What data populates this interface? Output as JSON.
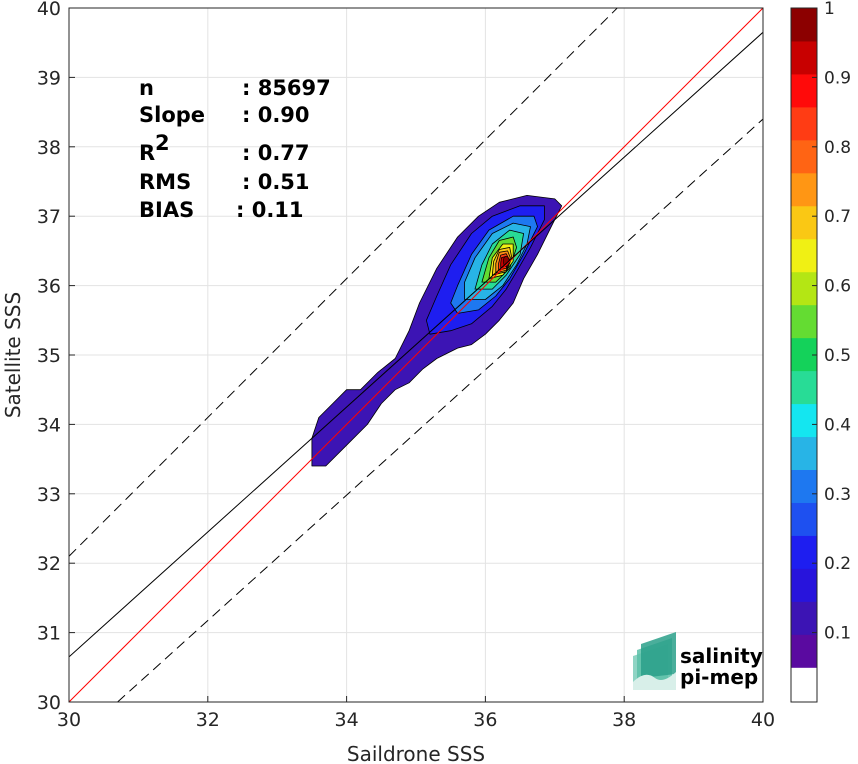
{
  "chart_data": {
    "type": "scatter",
    "subtype": "density-contour",
    "title": "",
    "xlabel": "Saildrone SSS",
    "ylabel": "Satellite SSS",
    "xlim": [
      30,
      40
    ],
    "ylim": [
      30,
      40
    ],
    "xticks": [
      "30",
      "32",
      "34",
      "36",
      "38",
      "40"
    ],
    "yticks": [
      "30",
      "31",
      "32",
      "33",
      "34",
      "35",
      "36",
      "37",
      "38",
      "39",
      "40"
    ],
    "grid": true,
    "stats": [
      {
        "key": "n",
        "sup": "",
        "value": ": 85697"
      },
      {
        "key": "Slope",
        "sup": "",
        "value": ": 0.90"
      },
      {
        "key": "R",
        "sup": "2",
        "value": ": 0.77"
      },
      {
        "key": "RMS",
        "sup": "",
        "value": ": 0.51"
      },
      {
        "key": "BIAS",
        "sup": "",
        "value": ": 0.11"
      }
    ],
    "lines": {
      "one_to_one": {
        "color": "#ff0000",
        "points": [
          [
            30,
            30
          ],
          [
            40,
            40
          ]
        ]
      },
      "regression": {
        "color": "#000000",
        "points": [
          [
            30,
            30.65
          ],
          [
            40,
            39.65
          ]
        ]
      },
      "upper_bound": {
        "color": "#000000",
        "dash": true,
        "points": [
          [
            30,
            32.1
          ],
          [
            39,
            41.1
          ]
        ]
      },
      "lower_bound": {
        "color": "#000000",
        "dash": true,
        "points": [
          [
            30.7,
            30
          ],
          [
            40,
            38.4
          ]
        ]
      }
    },
    "density_peak": {
      "x": 36.3,
      "y": 36.35
    },
    "density_levels": [
      {
        "level": 0.05,
        "color": "#3c14b4",
        "polygon": [
          [
            33.5,
            33.4
          ],
          [
            33.7,
            33.4
          ],
          [
            34.0,
            33.7
          ],
          [
            34.3,
            34.0
          ],
          [
            34.5,
            34.3
          ],
          [
            34.7,
            34.5
          ],
          [
            34.9,
            34.6
          ],
          [
            35.1,
            34.8
          ],
          [
            35.3,
            34.95
          ],
          [
            35.6,
            35.1
          ],
          [
            35.8,
            35.15
          ],
          [
            36.0,
            35.3
          ],
          [
            36.2,
            35.5
          ],
          [
            36.4,
            35.75
          ],
          [
            36.55,
            36.1
          ],
          [
            36.75,
            36.45
          ],
          [
            36.95,
            36.85
          ],
          [
            37.1,
            37.15
          ],
          [
            37.0,
            37.25
          ],
          [
            36.6,
            37.3
          ],
          [
            36.2,
            37.2
          ],
          [
            35.9,
            37.0
          ],
          [
            35.6,
            36.7
          ],
          [
            35.3,
            36.25
          ],
          [
            35.05,
            35.75
          ],
          [
            34.9,
            35.35
          ],
          [
            34.7,
            34.95
          ],
          [
            34.45,
            34.75
          ],
          [
            34.2,
            34.5
          ],
          [
            34.0,
            34.5
          ],
          [
            33.8,
            34.3
          ],
          [
            33.6,
            34.1
          ],
          [
            33.5,
            33.8
          ]
        ]
      },
      {
        "level": 0.15,
        "color": "#1e1ef0",
        "polygon": [
          [
            35.2,
            35.3
          ],
          [
            35.5,
            35.35
          ],
          [
            35.8,
            35.45
          ],
          [
            36.1,
            35.7
          ],
          [
            36.3,
            35.95
          ],
          [
            36.45,
            36.2
          ],
          [
            36.65,
            36.55
          ],
          [
            36.85,
            36.95
          ],
          [
            36.85,
            37.15
          ],
          [
            36.5,
            37.15
          ],
          [
            36.1,
            37.0
          ],
          [
            35.8,
            36.75
          ],
          [
            35.5,
            36.3
          ],
          [
            35.3,
            35.85
          ],
          [
            35.15,
            35.5
          ]
        ]
      },
      {
        "level": 0.25,
        "color": "#1e78f0",
        "polygon": [
          [
            35.6,
            35.6
          ],
          [
            35.9,
            35.65
          ],
          [
            36.15,
            35.85
          ],
          [
            36.35,
            36.1
          ],
          [
            36.55,
            36.45
          ],
          [
            36.75,
            36.85
          ],
          [
            36.7,
            37.0
          ],
          [
            36.4,
            37.0
          ],
          [
            36.05,
            36.8
          ],
          [
            35.8,
            36.45
          ],
          [
            35.6,
            36.0
          ],
          [
            35.5,
            35.75
          ]
        ]
      },
      {
        "level": 0.35,
        "color": "#28b4e6",
        "polygon": [
          [
            35.7,
            35.8
          ],
          [
            36.0,
            35.8
          ],
          [
            36.25,
            36.0
          ],
          [
            36.45,
            36.3
          ],
          [
            36.6,
            36.6
          ],
          [
            36.65,
            36.85
          ],
          [
            36.4,
            36.9
          ],
          [
            36.1,
            36.75
          ],
          [
            35.85,
            36.4
          ],
          [
            35.7,
            36.05
          ]
        ]
      },
      {
        "level": 0.45,
        "color": "#28dc96",
        "polygon": [
          [
            35.85,
            35.95
          ],
          [
            36.1,
            35.95
          ],
          [
            36.3,
            36.15
          ],
          [
            36.5,
            36.45
          ],
          [
            36.55,
            36.75
          ],
          [
            36.35,
            36.8
          ],
          [
            36.1,
            36.6
          ],
          [
            35.95,
            36.3
          ]
        ]
      },
      {
        "level": 0.55,
        "color": "#64dc32",
        "polygon": [
          [
            35.95,
            36.05
          ],
          [
            36.15,
            36.05
          ],
          [
            36.35,
            36.25
          ],
          [
            36.45,
            36.55
          ],
          [
            36.4,
            36.7
          ],
          [
            36.2,
            36.65
          ],
          [
            36.05,
            36.4
          ]
        ]
      },
      {
        "level": 0.62,
        "color": "#f0f014",
        "polygon": [
          [
            36.05,
            36.1
          ],
          [
            36.25,
            36.15
          ],
          [
            36.4,
            36.35
          ],
          [
            36.4,
            36.6
          ],
          [
            36.25,
            36.6
          ],
          [
            36.1,
            36.4
          ]
        ]
      },
      {
        "level": 0.7,
        "color": "#fac814",
        "polygon": [
          [
            36.1,
            36.15
          ],
          [
            36.3,
            36.2
          ],
          [
            36.38,
            36.4
          ],
          [
            36.35,
            36.55
          ],
          [
            36.2,
            36.52
          ],
          [
            36.12,
            36.35
          ]
        ]
      },
      {
        "level": 0.78,
        "color": "#ff8c14",
        "polygon": [
          [
            36.15,
            36.18
          ],
          [
            36.3,
            36.22
          ],
          [
            36.36,
            36.4
          ],
          [
            36.32,
            36.5
          ],
          [
            36.2,
            36.48
          ],
          [
            36.15,
            36.32
          ]
        ]
      },
      {
        "level": 0.86,
        "color": "#ff3c14",
        "polygon": [
          [
            36.19,
            36.22
          ],
          [
            36.3,
            36.25
          ],
          [
            36.34,
            36.38
          ],
          [
            36.3,
            36.46
          ],
          [
            36.22,
            36.44
          ],
          [
            36.19,
            36.32
          ]
        ]
      },
      {
        "level": 0.94,
        "color": "#c80000",
        "polygon": [
          [
            36.22,
            36.26
          ],
          [
            36.3,
            36.28
          ],
          [
            36.32,
            36.36
          ],
          [
            36.29,
            36.42
          ],
          [
            36.23,
            36.4
          ],
          [
            36.22,
            36.32
          ]
        ]
      }
    ],
    "colorbar": {
      "ticks": [
        "0.1",
        "0.2",
        "0.3",
        "0.4",
        "0.5",
        "0.6",
        "0.7",
        "0.8",
        "0.9",
        "1"
      ],
      "range": [
        0,
        1
      ],
      "band_bottom": 0.05,
      "colors": [
        "#ffffff",
        "#5a0aa0",
        "#3c14b4",
        "#2814dc",
        "#1e1ef0",
        "#1e50f0",
        "#1e78f0",
        "#28b4e6",
        "#14e6f0",
        "#28dc96",
        "#14d25a",
        "#64dc32",
        "#b4e614",
        "#f0f014",
        "#fac814",
        "#ff9614",
        "#ff6414",
        "#ff3c14",
        "#ff0a0a",
        "#c80000",
        "#8c0000"
      ]
    }
  },
  "logo": {
    "line1": "salinity",
    "line2": "pi-mep",
    "color": "#1ea08c"
  }
}
